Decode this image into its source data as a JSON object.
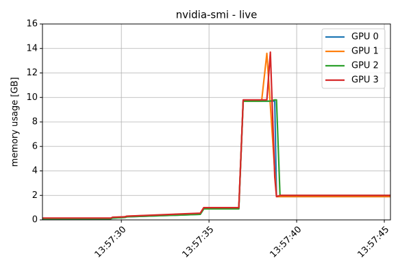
{
  "chart_data": {
    "type": "line",
    "title": "nvidia-smi - live",
    "ylabel": "memory usage [GB]",
    "x": [
      25.5,
      29.4,
      29.5,
      30.2,
      30.3,
      34.5,
      34.7,
      36.7,
      36.95,
      38.0,
      38.3,
      38.5,
      38.75,
      38.85,
      39.05,
      45.35
    ],
    "series": [
      {
        "name": "GPU 0",
        "color": "#1f77b4",
        "values": [
          0.1,
          0.1,
          0.15,
          0.2,
          0.25,
          0.45,
          0.9,
          0.9,
          9.7,
          9.7,
          9.7,
          9.7,
          9.7,
          1.9,
          1.9,
          1.9
        ]
      },
      {
        "name": "GPU 1",
        "color": "#ff7f0e",
        "values": [
          0.12,
          0.12,
          0.2,
          0.25,
          0.3,
          0.5,
          1.0,
          1.0,
          9.7,
          9.7,
          13.6,
          9.35,
          4.0,
          1.9,
          1.9,
          1.9
        ]
      },
      {
        "name": "GPU 2",
        "color": "#2ca02c",
        "values": [
          0.1,
          0.1,
          0.15,
          0.2,
          0.25,
          0.45,
          0.9,
          0.9,
          9.7,
          9.7,
          9.7,
          9.7,
          9.8,
          9.8,
          2.0,
          2.0
        ]
      },
      {
        "name": "GPU 3",
        "color": "#d62728",
        "values": [
          0.15,
          0.15,
          0.22,
          0.25,
          0.3,
          0.55,
          1.0,
          1.0,
          9.8,
          9.8,
          9.8,
          13.7,
          3.5,
          1.9,
          2.0,
          2.0
        ]
      }
    ],
    "xlim": [
      25.5,
      45.35
    ],
    "xticks": [
      {
        "value": 30,
        "label": "13:57:30"
      },
      {
        "value": 35,
        "label": "13:57:35"
      },
      {
        "value": 40,
        "label": "13:57:40"
      },
      {
        "value": 45,
        "label": "13:57:45"
      }
    ],
    "ylim": [
      0,
      16
    ],
    "yticks": [
      0,
      2,
      4,
      6,
      8,
      10,
      12,
      14,
      16
    ],
    "grid": true,
    "legend": "upper right"
  }
}
